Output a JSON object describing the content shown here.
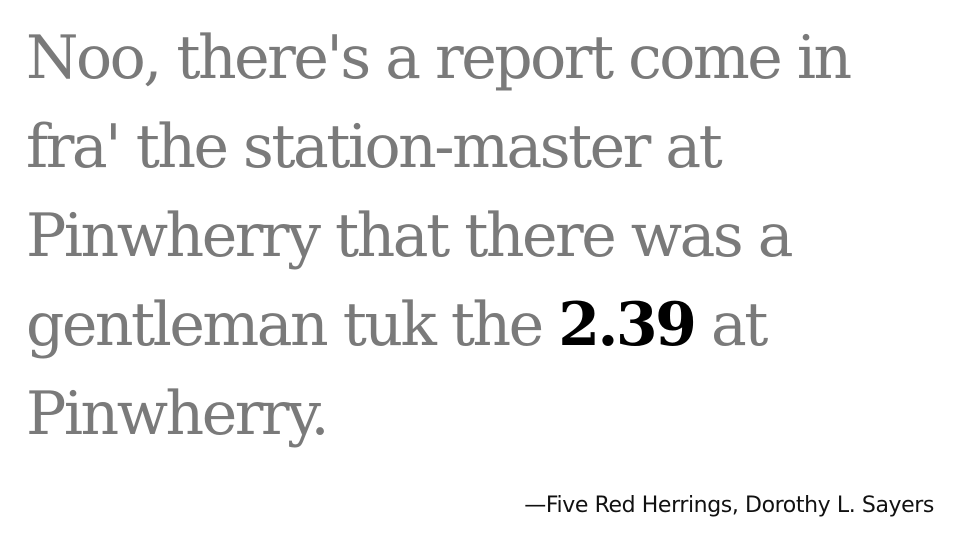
{
  "quote": {
    "before": "Noo, there's a report come in fra' the station-master at Pinwherry that there was a gentleman tuk the ",
    "highlight": "2.39",
    "after": " at Pinwherry."
  },
  "attribution": "—Five Red Herrings, Dorothy L. Sayers",
  "colors": {
    "quote_text": "#7a7a7a",
    "highlight_text": "#000000",
    "attribution_text": "#111111",
    "background": "#ffffff"
  }
}
